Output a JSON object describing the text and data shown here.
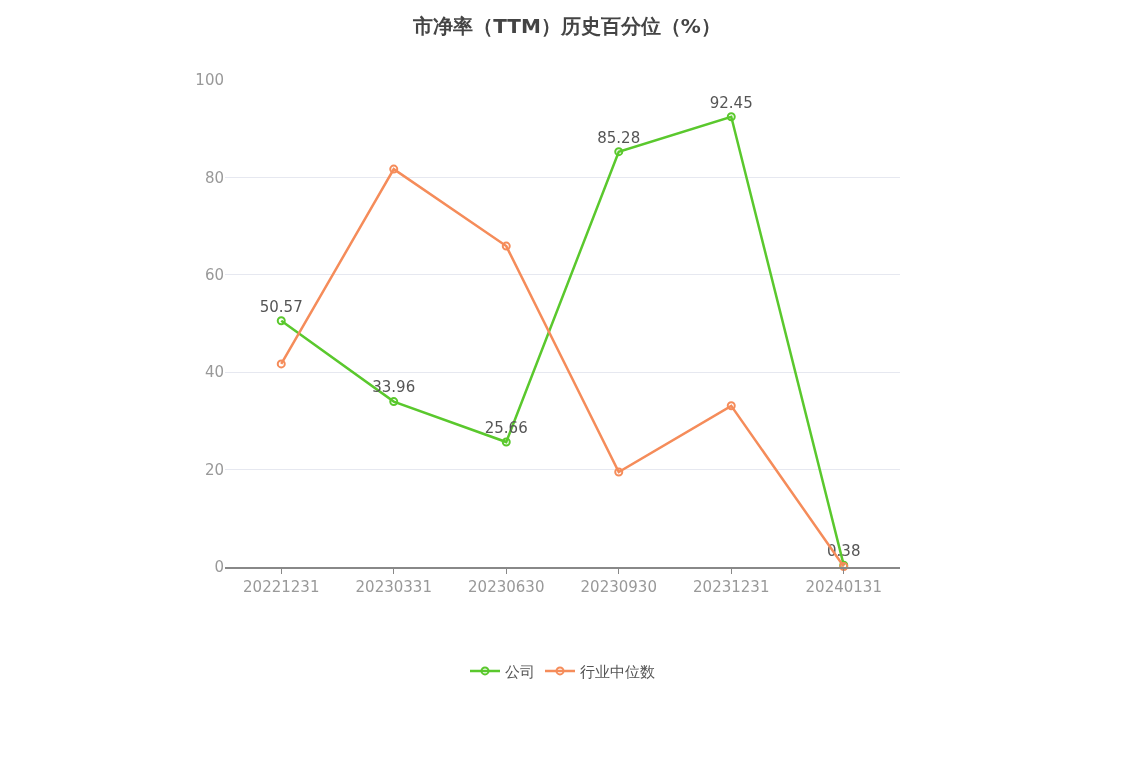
{
  "chart_data": {
    "type": "line",
    "title": "市净率（TTM）历史百分位（%）",
    "categories": [
      "20221231",
      "20230331",
      "20230630",
      "20230930",
      "20231231",
      "20240131"
    ],
    "series": [
      {
        "name": "公司",
        "color": "#5ac82d",
        "values": [
          50.57,
          33.96,
          25.66,
          85.28,
          92.45,
          0.38
        ],
        "value_labels": [
          "50.57",
          "33.96",
          "25.66",
          "85.28",
          "92.45",
          "0.38"
        ]
      },
      {
        "name": "行业中位数",
        "color": "#f58c5a",
        "values": [
          41.7,
          81.7,
          65.9,
          19.5,
          33.1,
          0.1
        ]
      }
    ],
    "ylim": [
      0,
      100
    ],
    "yticks": [
      0,
      20,
      40,
      60,
      80,
      100
    ],
    "grid": "y",
    "legend": "bottom",
    "marker": "circle",
    "line_style": "solid"
  }
}
